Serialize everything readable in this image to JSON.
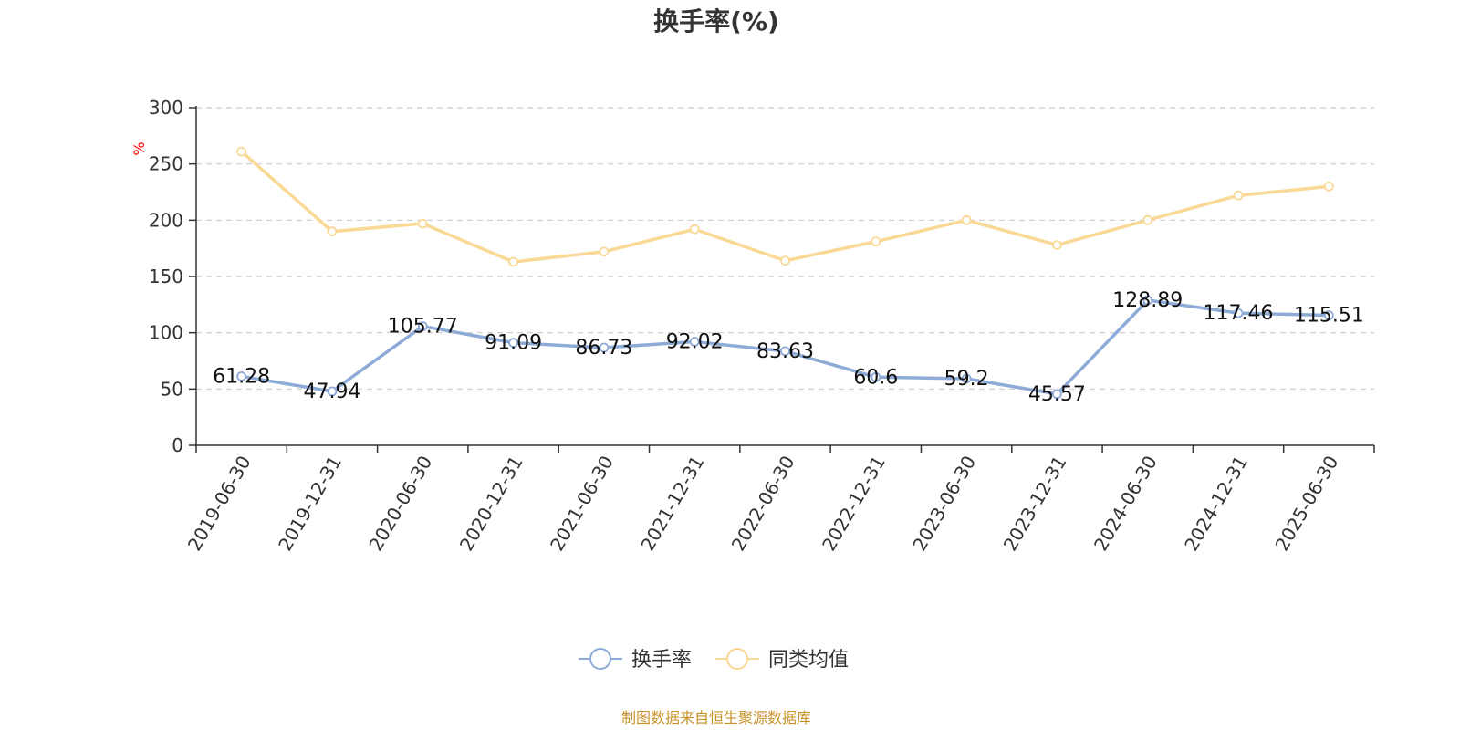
{
  "chart_data": {
    "type": "line",
    "title": "换手率(%)",
    "ylabel": "%",
    "ylim": [
      0,
      300
    ],
    "yticks": [
      0,
      50,
      100,
      150,
      200,
      250,
      300
    ],
    "grid": true,
    "legend_position": "bottom-center",
    "categories": [
      "2019-06-30",
      "2019-12-31",
      "2020-06-30",
      "2020-12-31",
      "2021-06-30",
      "2021-12-31",
      "2022-06-30",
      "2022-12-31",
      "2023-06-30",
      "2023-12-31",
      "2024-06-30",
      "2024-12-31",
      "2025-06-30"
    ],
    "series": [
      {
        "name": "换手率",
        "color": "#8eabd8",
        "values": [
          61.28,
          47.94,
          105.77,
          91.09,
          86.73,
          92.02,
          83.63,
          60.6,
          59.2,
          45.57,
          128.89,
          117.46,
          115.51
        ],
        "labels": [
          "61.28",
          "47.94",
          "105.77",
          "91.09",
          "86.73",
          "92.02",
          "83.63",
          "60.6",
          "59.2",
          "45.57",
          "128.89",
          "117.46",
          "115.51"
        ]
      },
      {
        "name": "同类均值",
        "color": "#fad896",
        "values": [
          261,
          190,
          197,
          163,
          172,
          192,
          164,
          181,
          200,
          178,
          200,
          222,
          230
        ]
      }
    ],
    "source": "制图数据来自恒生聚源数据库",
    "colors": {
      "axis": "#333333",
      "grid": "#cccccc",
      "unit": "#ff0000",
      "source": "#c8922a"
    }
  }
}
